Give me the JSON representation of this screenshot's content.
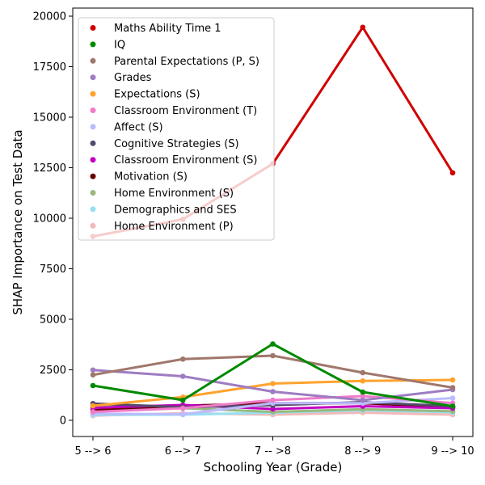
{
  "chart_data": {
    "type": "line",
    "title": "",
    "xlabel": "Schooling Year (Grade)",
    "ylabel": "SHAP Importance on Test Data",
    "categories": [
      "5 --> 6",
      "6 --> 7",
      "7 -- >8",
      "8 --> 9",
      "9 --> 10"
    ],
    "ylim": [
      -800,
      20400
    ],
    "yticks": [
      0,
      2500,
      5000,
      7500,
      10000,
      12500,
      15000,
      17500,
      20000
    ],
    "grid": false,
    "legend_position": "upper-left",
    "series": [
      {
        "name": "Maths Ability Time 1",
        "color": "#d10000",
        "values": [
          9100,
          9950,
          12700,
          19450,
          12250
        ]
      },
      {
        "name": "IQ",
        "color": "#008a00",
        "values": [
          1720,
          1000,
          3780,
          1400,
          700
        ]
      },
      {
        "name": "Parental Expectations (P, S)",
        "color": "#a0776b",
        "values": [
          2250,
          3030,
          3200,
          2360,
          1620
        ]
      },
      {
        "name": "Grades",
        "color": "#9e7cc1",
        "values": [
          2490,
          2180,
          1420,
          1000,
          1520
        ]
      },
      {
        "name": "Expectations (S)",
        "color": "#ffa32e",
        "values": [
          720,
          1150,
          1820,
          1950,
          2000
        ]
      },
      {
        "name": "Classroom Environment (T)",
        "color": "#f07bc9",
        "values": [
          420,
          600,
          1000,
          1200,
          850
        ]
      },
      {
        "name": "Affect (S)",
        "color": "#bbbbff",
        "values": [
          330,
          300,
          850,
          850,
          1100
        ]
      },
      {
        "name": "Cognitive Strategies (S)",
        "color": "#564a6a",
        "values": [
          830,
          650,
          750,
          900,
          700
        ]
      },
      {
        "name": "Classroom Environment (S)",
        "color": "#c200c2",
        "values": [
          620,
          760,
          560,
          700,
          600
        ]
      },
      {
        "name": "Motivation (S)",
        "color": "#6b0000",
        "values": [
          500,
          720,
          850,
          850,
          650
        ]
      },
      {
        "name": "Home Environment (S)",
        "color": "#98b880",
        "values": [
          720,
          600,
          420,
          550,
          450
        ]
      },
      {
        "name": "Demographics and SES",
        "color": "#97e0f0",
        "values": [
          270,
          280,
          380,
          500,
          400
        ]
      },
      {
        "name": "Home Environment (P)",
        "color": "#f2b9b9",
        "values": [
          230,
          350,
          280,
          380,
          280
        ]
      }
    ]
  }
}
